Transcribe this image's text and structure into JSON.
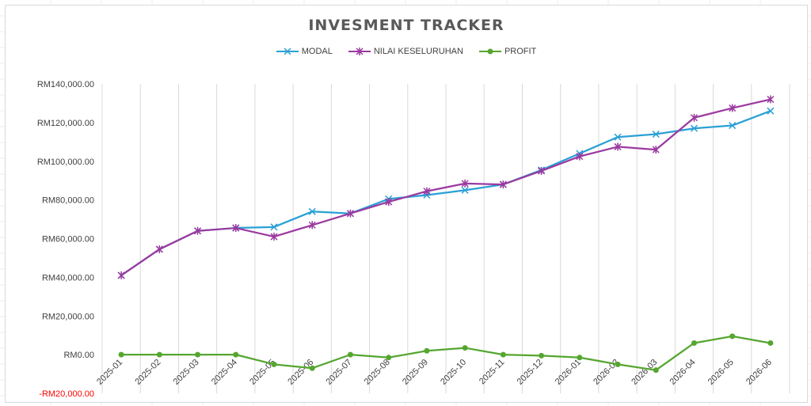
{
  "chart_data": {
    "type": "line",
    "title": "INVESMENT TRACKER",
    "categories": [
      "2025-01",
      "2025-02",
      "2025-03",
      "2025-04",
      "2025-05",
      "2025-06",
      "2025-07",
      "2025-08",
      "2025-09",
      "2025-10",
      "2025-11",
      "2025-12",
      "2026-01",
      "2026-02",
      "2026-03",
      "2026-04",
      "2026-05",
      "2026-06"
    ],
    "series": [
      {
        "name": "MODAL",
        "color": "#2aa0d6",
        "marker": "x",
        "values": [
          41000,
          54500,
          64000,
          65500,
          66000,
          74000,
          73000,
          80500,
          82500,
          85000,
          88000,
          95500,
          104000,
          112500,
          114000,
          117000,
          118500,
          126000
        ]
      },
      {
        "name": "NILAI KESELURUHAN",
        "color": "#9b3aa0",
        "marker": "star",
        "values": [
          41000,
          54500,
          64000,
          65500,
          61000,
          67000,
          73000,
          79000,
          84500,
          88500,
          88000,
          95000,
          102500,
          107500,
          106000,
          122500,
          127500,
          132000
        ]
      },
      {
        "name": "PROFIT",
        "color": "#55a630",
        "marker": "circle",
        "values": [
          0,
          0,
          0,
          0,
          -5000,
          -7000,
          0,
          -1500,
          2000,
          3500,
          0,
          -500,
          -1500,
          -5000,
          -8000,
          6000,
          9500,
          6000
        ]
      }
    ],
    "yticks": [
      "RM140,000.00",
      "RM120,000.00",
      "RM100,000.00",
      "RM80,000.00",
      "RM60,000.00",
      "RM40,000.00",
      "RM20,000.00",
      "RM0.00",
      "-RM20,000.00"
    ],
    "ylim": [
      -20000,
      140000
    ],
    "negative_tick_color": "#ff0000",
    "legend_position": "top",
    "grid": true
  }
}
